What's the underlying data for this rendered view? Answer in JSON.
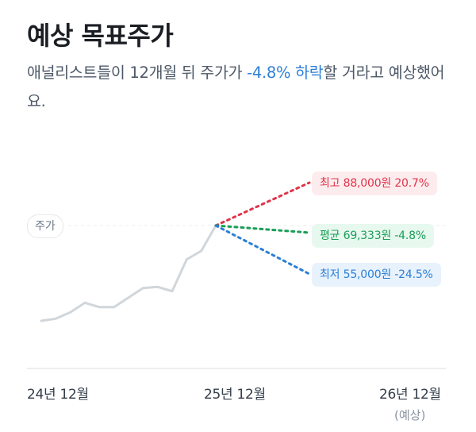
{
  "header": {
    "title": "예상 목표주가"
  },
  "summary": {
    "text_before": "애널리스트들이 12개월 뒤 주가가 ",
    "change": "-4.8% 하락",
    "text_after": "할 거라고 예상했어요."
  },
  "chart_data": {
    "type": "line",
    "price_label": "주가",
    "x_labels": [
      "24년 12월",
      "25년 12월",
      "26년 12월"
    ],
    "x_sub_label": "(예상)",
    "series": [
      {
        "values": [
          100,
          102,
          108,
          117,
          113,
          113,
          122,
          131,
          132,
          128,
          158,
          166,
          190
        ]
      }
    ],
    "targets": [
      {
        "key": "high",
        "text": "최고 88,000원 20.7%",
        "color": "#e0344a"
      },
      {
        "key": "avg",
        "text": "평균 69,333원 -4.8%",
        "color": "#1a9e57"
      },
      {
        "key": "low",
        "text": "최저 55,000원 -24.5%",
        "color": "#2b7fd6"
      }
    ]
  },
  "colors": {
    "accent": "#2f80d8",
    "line": "#d1d6db",
    "axis": "#e5e8eb"
  }
}
